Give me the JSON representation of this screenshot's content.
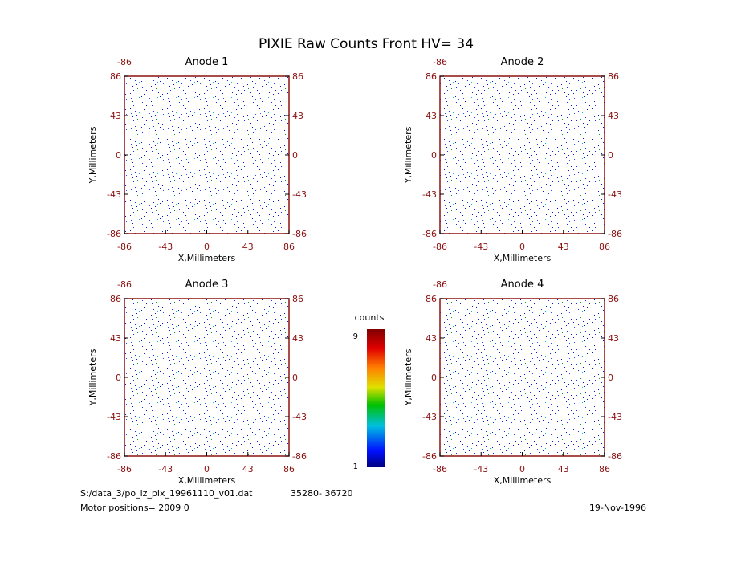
{
  "title": "PIXIE Raw Counts Front HV= 34",
  "chart_data": [
    {
      "type": "heatmap",
      "title": "Anode 1",
      "x_label": "X,Millimeters",
      "y_label": "Y,Millimeters",
      "xlim": [
        -86,
        86
      ],
      "ylim": [
        -86,
        86
      ],
      "xticks": [
        -86,
        -43,
        0,
        43,
        86
      ],
      "yticks": [
        -86,
        -43,
        0,
        43,
        86
      ]
    },
    {
      "type": "heatmap",
      "title": "Anode 2",
      "x_label": "X,Millimeters",
      "y_label": "Y,Millimeters",
      "xlim": [
        -86,
        86
      ],
      "ylim": [
        -86,
        86
      ],
      "xticks": [
        -86,
        -43,
        0,
        43,
        86
      ],
      "yticks": [
        -86,
        -43,
        0,
        43,
        86
      ]
    },
    {
      "type": "heatmap",
      "title": "Anode 3",
      "x_label": "X,Millimeters",
      "y_label": "Y,Millimeters",
      "xlim": [
        -86,
        86
      ],
      "ylim": [
        -86,
        86
      ],
      "xticks": [
        -86,
        -43,
        0,
        43,
        86
      ],
      "yticks": [
        -86,
        -43,
        0,
        43,
        86
      ]
    },
    {
      "type": "heatmap",
      "title": "Anode 4",
      "x_label": "X,Millimeters",
      "y_label": "Y,Millimeters",
      "xlim": [
        -86,
        86
      ],
      "ylim": [
        -86,
        86
      ],
      "xticks": [
        -86,
        -43,
        0,
        43,
        86
      ],
      "yticks": [
        -86,
        -43,
        0,
        43,
        86
      ]
    }
  ],
  "colorbar": {
    "label": "counts",
    "lim": [
      1,
      9
    ],
    "ticks": [
      1,
      9
    ]
  },
  "footer": {
    "file": "S:/data_3/po_lz_pix_19961110_v01.dat",
    "range": "35280- 36720",
    "motor": "Motor positions= 2009 0",
    "date": "19-Nov-1996"
  }
}
